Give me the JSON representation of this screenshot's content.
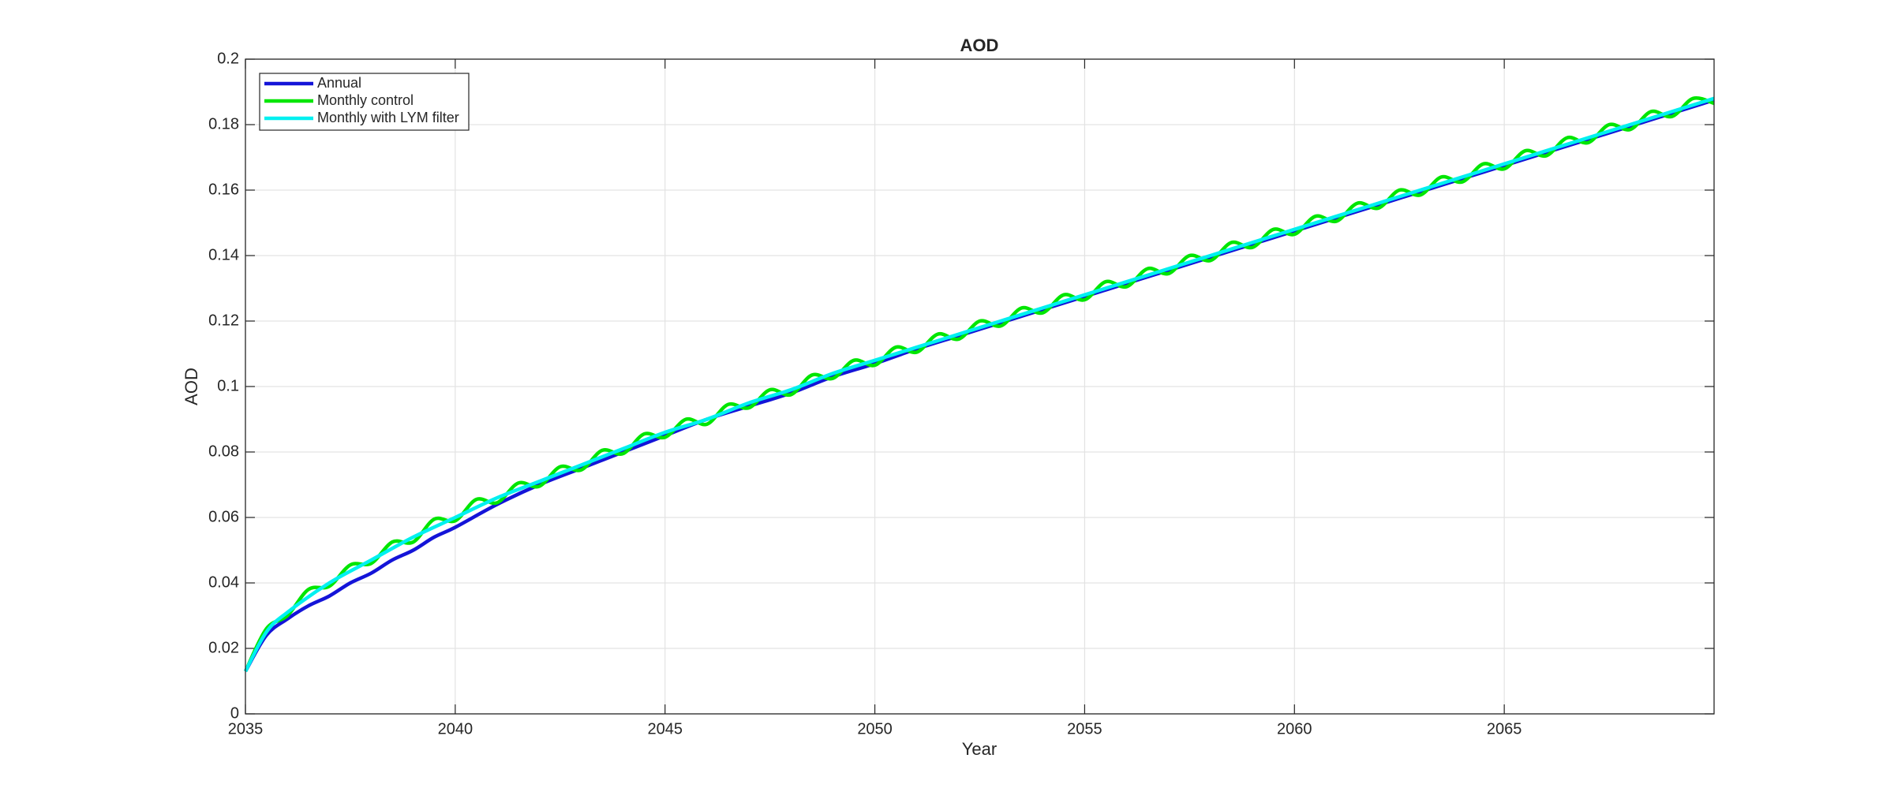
{
  "chart_data": {
    "type": "line",
    "title": "AOD",
    "xlabel": "Year",
    "ylabel": "AOD",
    "xlim": [
      2035,
      2070
    ],
    "xticks": [
      2035,
      2040,
      2045,
      2050,
      2055,
      2060,
      2065
    ],
    "ylim": [
      0,
      0.2
    ],
    "yticks": [
      0,
      0.02,
      0.04,
      0.06,
      0.08,
      0.1,
      0.12,
      0.14,
      0.16,
      0.18,
      0.2
    ],
    "grid": true,
    "legend": "upper-left",
    "series": [
      {
        "name": "Annual",
        "color": "#1414d8",
        "x": [
          2035,
          2035.5,
          2036,
          2036.5,
          2037,
          2037.5,
          2038,
          2038.5,
          2039,
          2039.5,
          2040,
          2041,
          2042,
          2043,
          2044,
          2045,
          2046,
          2047,
          2048,
          2049,
          2050,
          2051,
          2052,
          2053,
          2054,
          2055,
          2056,
          2057,
          2058,
          2059,
          2060,
          2061,
          2062,
          2063,
          2064,
          2065,
          2066,
          2067,
          2068,
          2069,
          2070
        ],
        "values": [
          0.013,
          0.024,
          0.029,
          0.033,
          0.036,
          0.04,
          0.043,
          0.047,
          0.05,
          0.054,
          0.057,
          0.064,
          0.07,
          0.075,
          0.08,
          0.085,
          0.09,
          0.094,
          0.098,
          0.103,
          0.107,
          0.1115,
          0.1155,
          0.1195,
          0.1235,
          0.1275,
          0.1315,
          0.1355,
          0.1395,
          0.1435,
          0.1475,
          0.1515,
          0.1555,
          0.1595,
          0.1635,
          0.1675,
          0.1715,
          0.1755,
          0.1795,
          0.1835,
          0.1875
        ]
      },
      {
        "name": "Monthly control",
        "color": "#00e600",
        "x": [
          2035,
          2035.5,
          2036,
          2036.5,
          2037,
          2037.5,
          2038,
          2038.5,
          2039,
          2039.5,
          2040,
          2040.5,
          2041,
          2041.5,
          2042,
          2042.5,
          2043,
          2043.5,
          2044,
          2044.5,
          2045,
          2045.5,
          2046,
          2046.5,
          2047,
          2047.5,
          2048,
          2048.5,
          2049,
          2049.5,
          2050,
          2050.5,
          2051,
          2051.5,
          2052,
          2052.5,
          2053,
          2053.5,
          2054,
          2054.5,
          2055,
          2055.5,
          2056,
          2056.5,
          2057,
          2057.5,
          2058,
          2058.5,
          2059,
          2059.5,
          2060,
          2060.5,
          2061,
          2061.5,
          2062,
          2062.5,
          2063,
          2063.5,
          2064,
          2064.5,
          2065,
          2065.5,
          2066,
          2066.5,
          2067,
          2067.5,
          2068,
          2068.5,
          2069,
          2069.5,
          2070
        ],
        "values": [
          0.013,
          0.026,
          0.03,
          0.038,
          0.039,
          0.0455,
          0.046,
          0.0525,
          0.0525,
          0.0595,
          0.059,
          0.0655,
          0.0645,
          0.0705,
          0.0695,
          0.0755,
          0.0745,
          0.0805,
          0.0795,
          0.0855,
          0.0845,
          0.09,
          0.0885,
          0.0945,
          0.0935,
          0.099,
          0.0975,
          0.1035,
          0.1025,
          0.108,
          0.1065,
          0.112,
          0.1105,
          0.116,
          0.1145,
          0.12,
          0.1185,
          0.124,
          0.1225,
          0.128,
          0.1265,
          0.132,
          0.1305,
          0.136,
          0.1345,
          0.14,
          0.1385,
          0.144,
          0.1425,
          0.148,
          0.1465,
          0.152,
          0.1505,
          0.156,
          0.1545,
          0.16,
          0.1585,
          0.164,
          0.1625,
          0.168,
          0.1665,
          0.172,
          0.1705,
          0.176,
          0.1745,
          0.18,
          0.1785,
          0.184,
          0.1825,
          0.188,
          0.1865
        ]
      },
      {
        "name": "Monthly with LYM filter",
        "color": "#00f0f0",
        "x": [
          2035,
          2035.5,
          2036,
          2037,
          2038,
          2039,
          2040,
          2041,
          2042,
          2043,
          2044,
          2045,
          2046,
          2047,
          2048,
          2049,
          2050,
          2051,
          2052,
          2053,
          2054,
          2055,
          2056,
          2057,
          2058,
          2059,
          2060,
          2061,
          2062,
          2063,
          2064,
          2065,
          2066,
          2067,
          2068,
          2069,
          2070
        ],
        "values": [
          0.013,
          0.025,
          0.031,
          0.04,
          0.047,
          0.054,
          0.06,
          0.066,
          0.071,
          0.076,
          0.081,
          0.086,
          0.09,
          0.095,
          0.099,
          0.104,
          0.108,
          0.112,
          0.116,
          0.12,
          0.124,
          0.128,
          0.132,
          0.136,
          0.14,
          0.144,
          0.148,
          0.152,
          0.156,
          0.16,
          0.164,
          0.168,
          0.172,
          0.176,
          0.18,
          0.184,
          0.188
        ]
      }
    ]
  }
}
